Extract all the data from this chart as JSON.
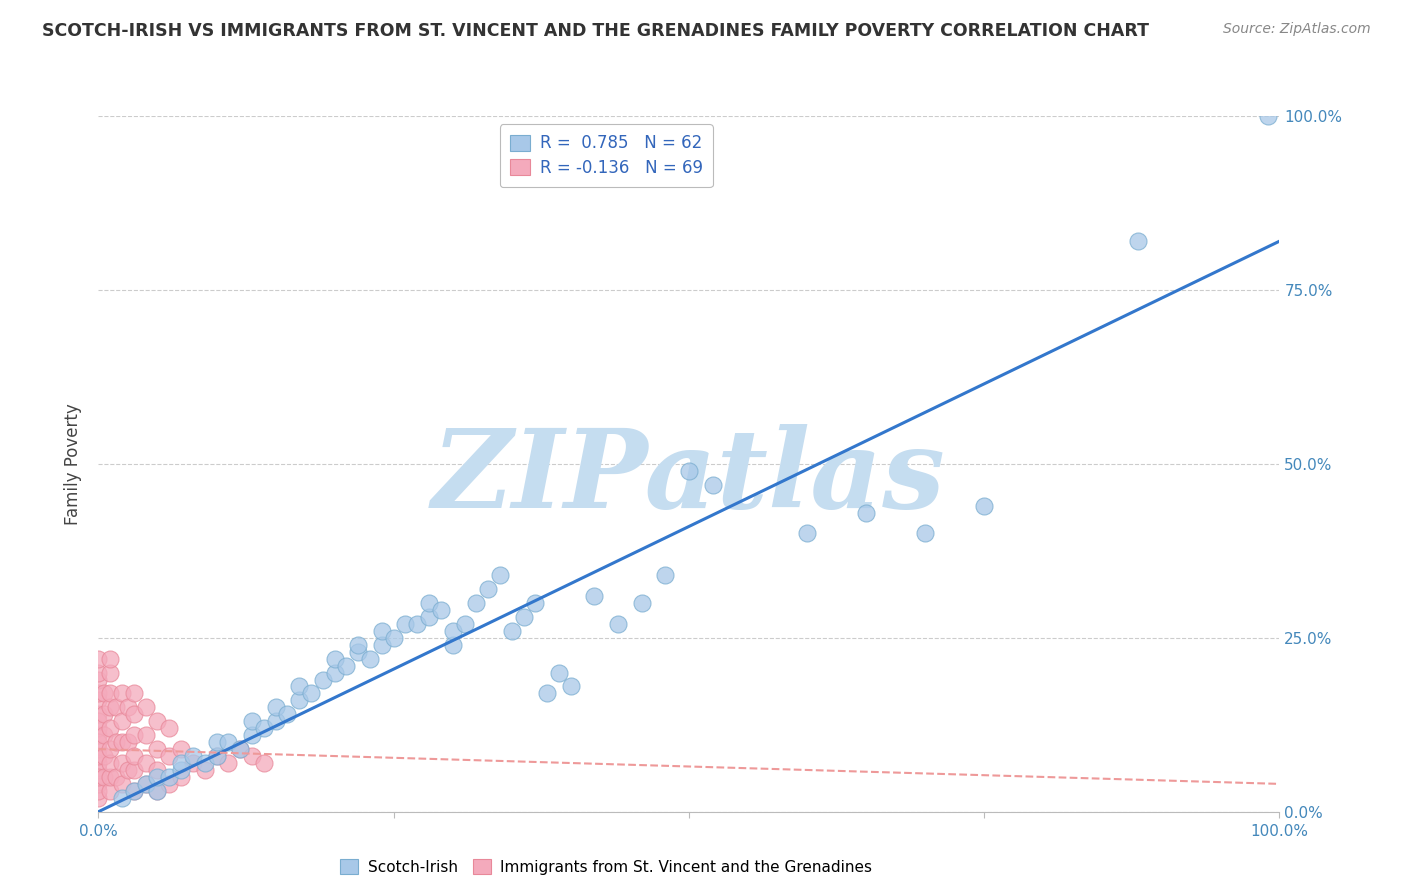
{
  "title": "SCOTCH-IRISH VS IMMIGRANTS FROM ST. VINCENT AND THE GRENADINES FAMILY POVERTY CORRELATION CHART",
  "source": "Source: ZipAtlas.com",
  "ylabel": "Family Poverty",
  "xlim": [
    0,
    1
  ],
  "ylim": [
    0,
    1
  ],
  "xticks": [
    0.0,
    0.25,
    0.5,
    0.75,
    1.0
  ],
  "yticks": [
    0.0,
    0.25,
    0.5,
    0.75,
    1.0
  ],
  "xtick_labels": [
    "0.0%",
    "",
    "",
    "",
    "100.0%"
  ],
  "ytick_labels": [
    "0.0%",
    "25.0%",
    "50.0%",
    "75.0%",
    "100.0%"
  ],
  "blue_R": 0.785,
  "blue_N": 62,
  "pink_R": -0.136,
  "pink_N": 69,
  "blue_color": "#A8C8E8",
  "pink_color": "#F4AABC",
  "blue_edge": "#7AADD0",
  "pink_edge": "#E88899",
  "trend_blue": "#3377CC",
  "trend_pink": "#EE9999",
  "watermark": "ZIPatlas",
  "watermark_color": "#C5DDF0",
  "legend_text_color": "#3366BB",
  "legend_label_color": "#333333",
  "blue_x": [
    0.02,
    0.03,
    0.04,
    0.05,
    0.05,
    0.06,
    0.07,
    0.07,
    0.08,
    0.09,
    0.1,
    0.1,
    0.11,
    0.12,
    0.13,
    0.13,
    0.14,
    0.15,
    0.15,
    0.16,
    0.17,
    0.17,
    0.18,
    0.19,
    0.2,
    0.2,
    0.21,
    0.22,
    0.22,
    0.23,
    0.24,
    0.24,
    0.25,
    0.26,
    0.27,
    0.28,
    0.28,
    0.29,
    0.3,
    0.3,
    0.31,
    0.32,
    0.33,
    0.34,
    0.35,
    0.36,
    0.37,
    0.38,
    0.39,
    0.4,
    0.42,
    0.44,
    0.46,
    0.48,
    0.5,
    0.52,
    0.6,
    0.65,
    0.7,
    0.75,
    0.88,
    0.99
  ],
  "blue_y": [
    0.02,
    0.03,
    0.04,
    0.03,
    0.05,
    0.05,
    0.06,
    0.07,
    0.08,
    0.07,
    0.08,
    0.1,
    0.1,
    0.09,
    0.11,
    0.13,
    0.12,
    0.13,
    0.15,
    0.14,
    0.16,
    0.18,
    0.17,
    0.19,
    0.2,
    0.22,
    0.21,
    0.23,
    0.24,
    0.22,
    0.24,
    0.26,
    0.25,
    0.27,
    0.27,
    0.28,
    0.3,
    0.29,
    0.24,
    0.26,
    0.27,
    0.3,
    0.32,
    0.34,
    0.26,
    0.28,
    0.3,
    0.17,
    0.2,
    0.18,
    0.31,
    0.27,
    0.3,
    0.34,
    0.49,
    0.47,
    0.4,
    0.43,
    0.4,
    0.44,
    0.82,
    1.0
  ],
  "pink_x": [
    0.0,
    0.0,
    0.0,
    0.0,
    0.0,
    0.0,
    0.0,
    0.0,
    0.0,
    0.0,
    0.0,
    0.0,
    0.0,
    0.0,
    0.0,
    0.0,
    0.0,
    0.0,
    0.005,
    0.005,
    0.005,
    0.005,
    0.005,
    0.01,
    0.01,
    0.01,
    0.01,
    0.01,
    0.01,
    0.01,
    0.01,
    0.01,
    0.015,
    0.015,
    0.015,
    0.02,
    0.02,
    0.02,
    0.02,
    0.02,
    0.025,
    0.025,
    0.025,
    0.03,
    0.03,
    0.03,
    0.03,
    0.03,
    0.03,
    0.04,
    0.04,
    0.04,
    0.04,
    0.05,
    0.05,
    0.05,
    0.05,
    0.06,
    0.06,
    0.06,
    0.07,
    0.07,
    0.08,
    0.09,
    0.1,
    0.11,
    0.12,
    0.13,
    0.14
  ],
  "pink_y": [
    0.02,
    0.04,
    0.06,
    0.07,
    0.09,
    0.11,
    0.12,
    0.14,
    0.16,
    0.17,
    0.19,
    0.2,
    0.22,
    0.03,
    0.05,
    0.08,
    0.1,
    0.13,
    0.05,
    0.08,
    0.11,
    0.14,
    0.17,
    0.03,
    0.05,
    0.07,
    0.09,
    0.12,
    0.15,
    0.17,
    0.2,
    0.22,
    0.05,
    0.1,
    0.15,
    0.04,
    0.07,
    0.1,
    0.13,
    0.17,
    0.06,
    0.1,
    0.15,
    0.03,
    0.06,
    0.08,
    0.11,
    0.14,
    0.17,
    0.04,
    0.07,
    0.11,
    0.15,
    0.03,
    0.06,
    0.09,
    0.13,
    0.04,
    0.08,
    0.12,
    0.05,
    0.09,
    0.07,
    0.06,
    0.08,
    0.07,
    0.09,
    0.08,
    0.07
  ],
  "blue_trend_x": [
    0.0,
    1.0
  ],
  "blue_trend_y": [
    0.0,
    0.82
  ],
  "pink_trend_x": [
    0.0,
    1.0
  ],
  "pink_trend_y": [
    0.09,
    0.04
  ]
}
